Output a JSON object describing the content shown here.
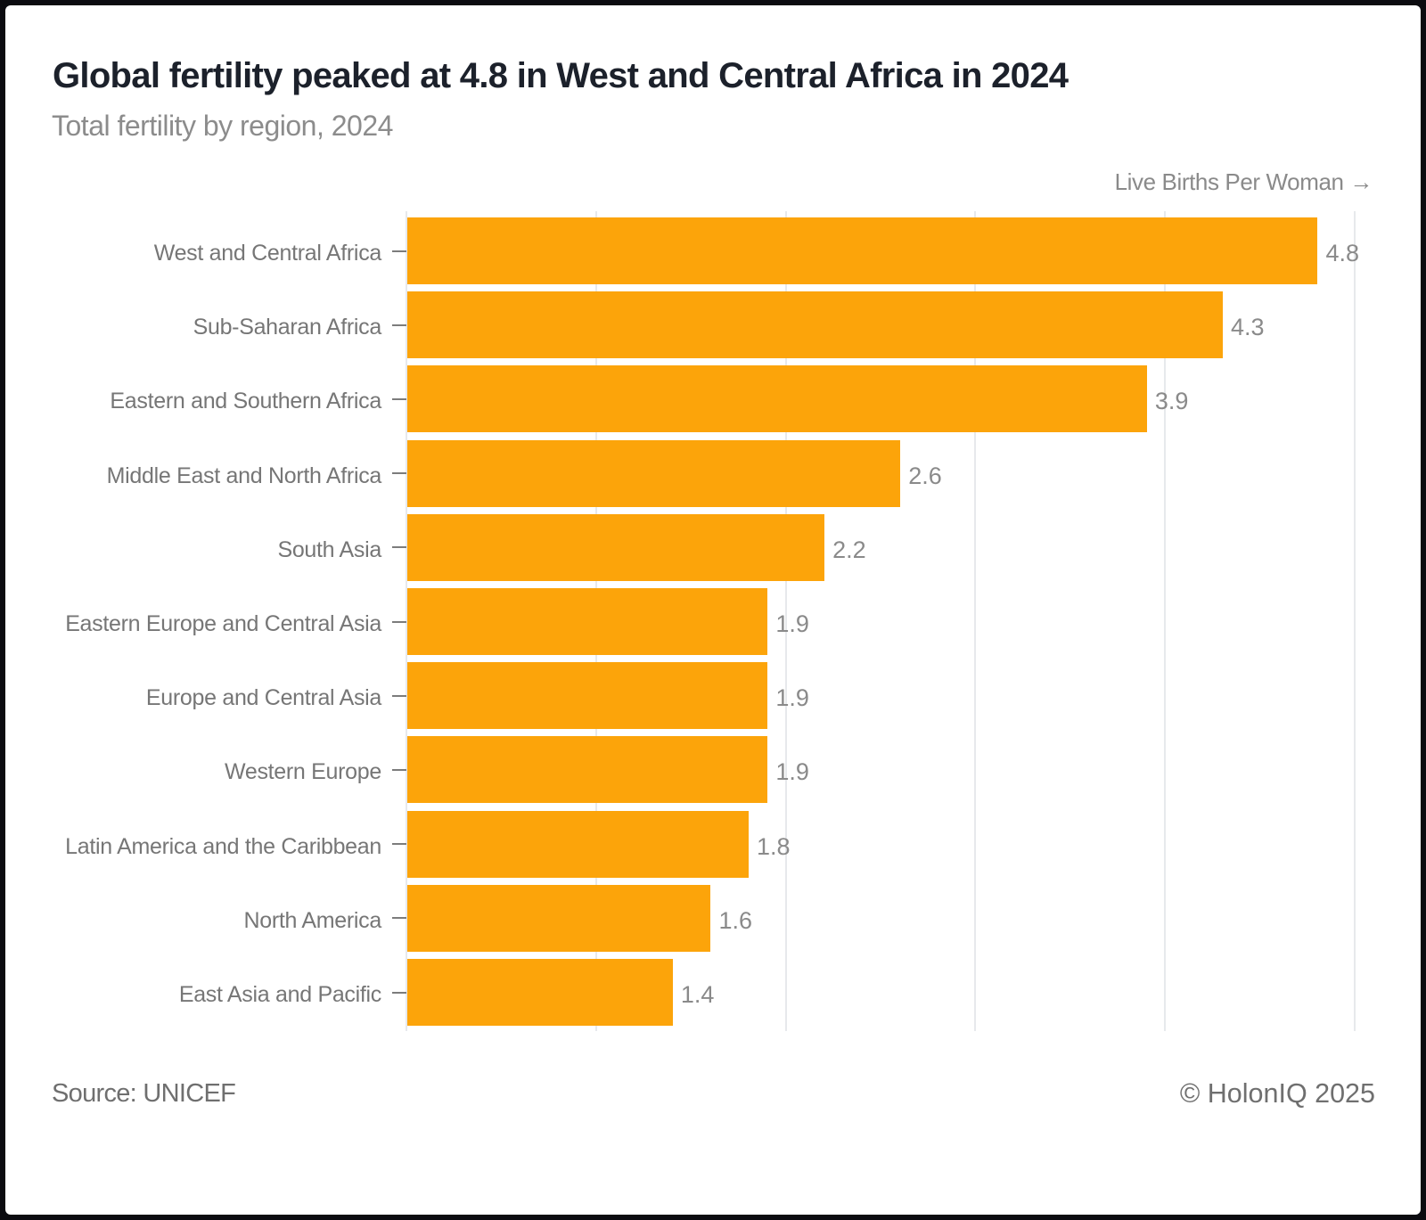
{
  "title": "Global fertility peaked at 4.8 in West and Central Africa in 2024",
  "subtitle": "Total fertility by region, 2024",
  "axis_name": "Live Births Per Woman →",
  "footer": {
    "source": "Source: UNICEF",
    "copyright": "© HolonIQ 2025"
  },
  "colors": {
    "bar": "#fca40a",
    "title": "#1c212b",
    "subtitle": "#8c8c8c",
    "labels": "#767676",
    "values": "#8a8a8a",
    "gridline": "#e7e9ec",
    "frame": "#0b0b10",
    "card": "#ffffff"
  },
  "chart_data": {
    "type": "bar",
    "orientation": "horizontal",
    "title": "Global fertility peaked at 4.8 in West and Central Africa in 2024",
    "subtitle": "Total fertility by region, 2024",
    "xlabel": "Live Births Per Woman",
    "ylabel": "",
    "xlim": [
      0,
      5
    ],
    "gridlines": [
      0,
      1,
      2,
      3,
      4,
      5
    ],
    "legend": false,
    "categories": [
      "West and Central Africa",
      "Sub-Saharan Africa",
      "Eastern and Southern Africa",
      "Middle East and North Africa",
      "South Asia",
      "Eastern Europe and Central Asia",
      "Europe and Central Asia",
      "Western Europe",
      "Latin America and the Caribbean",
      "North America",
      "East Asia and Pacific"
    ],
    "values": [
      4.8,
      4.3,
      3.9,
      2.6,
      2.2,
      1.9,
      1.9,
      1.9,
      1.8,
      1.6,
      1.4
    ],
    "value_labels": [
      "4.8",
      "4.3",
      "3.9",
      "2.6",
      "2.2",
      "1.9",
      "1.9",
      "1.9",
      "1.8",
      "1.6",
      "1.4"
    ]
  }
}
